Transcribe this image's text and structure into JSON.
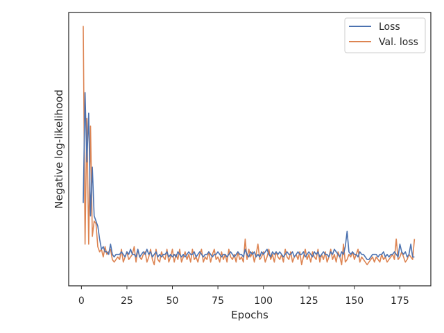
{
  "chart_data": {
    "type": "line",
    "title": "",
    "xlabel": "Epochs",
    "ylabel": "Negative log-likelihood",
    "xlim": [
      -7,
      192
    ],
    "ylim": [
      0,
      100
    ],
    "xticks": [
      0,
      25,
      50,
      75,
      100,
      125,
      150,
      175
    ],
    "y_tick_labels": "none",
    "grid": false,
    "legend_position": "top-right",
    "series": [
      {
        "name": "Loss",
        "color": "#4c72b0",
        "x": [
          1,
          2,
          3,
          4,
          5,
          6,
          7,
          8,
          9,
          10,
          11,
          12,
          13,
          14,
          15,
          16,
          17,
          18,
          19,
          20,
          21,
          22,
          23,
          24,
          25,
          26,
          27,
          28,
          29,
          30,
          31,
          32,
          33,
          34,
          35,
          36,
          37,
          38,
          39,
          40,
          41,
          42,
          43,
          44,
          45,
          46,
          47,
          48,
          49,
          50,
          51,
          52,
          53,
          54,
          55,
          56,
          57,
          58,
          59,
          60,
          61,
          62,
          63,
          64,
          65,
          66,
          67,
          68,
          69,
          70,
          71,
          72,
          73,
          74,
          75,
          76,
          77,
          78,
          79,
          80,
          81,
          82,
          83,
          84,
          85,
          86,
          87,
          88,
          89,
          90,
          91,
          92,
          93,
          94,
          95,
          96,
          97,
          98,
          99,
          100,
          101,
          102,
          103,
          104,
          105,
          106,
          107,
          108,
          109,
          110,
          111,
          112,
          113,
          114,
          115,
          116,
          117,
          118,
          119,
          120,
          121,
          122,
          123,
          124,
          125,
          126,
          127,
          128,
          129,
          130,
          131,
          132,
          133,
          134,
          135,
          136,
          137,
          138,
          139,
          140,
          141,
          142,
          143,
          144,
          145,
          146,
          147,
          148,
          149,
          150,
          151,
          152,
          153,
          154,
          155,
          156,
          157,
          158,
          159,
          160,
          161,
          162,
          163,
          164,
          165,
          166,
          167,
          168,
          169,
          170,
          171,
          172,
          173,
          174,
          175,
          176,
          177,
          178,
          179,
          180,
          181,
          182,
          183
        ],
        "values": [
          29,
          72,
          45,
          64,
          24,
          43,
          24,
          22,
          20,
          15,
          11,
          12,
          10,
          10,
          9,
          13,
          9,
          8,
          9,
          9,
          9,
          10,
          9,
          8,
          10,
          9,
          11,
          9,
          9,
          8,
          11,
          8,
          9,
          10,
          9,
          11,
          9,
          10,
          8,
          9,
          10,
          8,
          9,
          8,
          9,
          9,
          10,
          8,
          9,
          8,
          9,
          8,
          10,
          9,
          8,
          9,
          8,
          9,
          10,
          9,
          9,
          10,
          8,
          9,
          10,
          9,
          8,
          9,
          9,
          10,
          9,
          8,
          9,
          9,
          10,
          9,
          8,
          9,
          9,
          8,
          9,
          10,
          9,
          8,
          9,
          10,
          9,
          9,
          8,
          11,
          9,
          8,
          10,
          9,
          10,
          8,
          9,
          8,
          10,
          9,
          10,
          11,
          9,
          8,
          10,
          9,
          10,
          9,
          10,
          9,
          8,
          9,
          10,
          9,
          9,
          10,
          8,
          9,
          10,
          9,
          9,
          10,
          8,
          9,
          10,
          9,
          8,
          10,
          9,
          10,
          8,
          9,
          10,
          9,
          9,
          8,
          10,
          9,
          11,
          10,
          9,
          8,
          10,
          9,
          12,
          18,
          10,
          9,
          10,
          9,
          9,
          8,
          10,
          9,
          9,
          8,
          7,
          7,
          8,
          9,
          9,
          9,
          8,
          9,
          9,
          10,
          8,
          9,
          8,
          9,
          9,
          10,
          9,
          8,
          13,
          10,
          9,
          10,
          8,
          9,
          13,
          8,
          8
        ]
      },
      {
        "name": "Val. loss",
        "color": "#dd8452",
        "x": [
          1,
          2,
          3,
          4,
          5,
          6,
          7,
          8,
          9,
          10,
          11,
          12,
          13,
          14,
          15,
          16,
          17,
          18,
          19,
          20,
          21,
          22,
          23,
          24,
          25,
          26,
          27,
          28,
          29,
          30,
          31,
          32,
          33,
          34,
          35,
          36,
          37,
          38,
          39,
          40,
          41,
          42,
          43,
          44,
          45,
          46,
          47,
          48,
          49,
          50,
          51,
          52,
          53,
          54,
          55,
          56,
          57,
          58,
          59,
          60,
          61,
          62,
          63,
          64,
          65,
          66,
          67,
          68,
          69,
          70,
          71,
          72,
          73,
          74,
          75,
          76,
          77,
          78,
          79,
          80,
          81,
          82,
          83,
          84,
          85,
          86,
          87,
          88,
          89,
          90,
          91,
          92,
          93,
          94,
          95,
          96,
          97,
          98,
          99,
          100,
          101,
          102,
          103,
          104,
          105,
          106,
          107,
          108,
          109,
          110,
          111,
          112,
          113,
          114,
          115,
          116,
          117,
          118,
          119,
          120,
          121,
          122,
          123,
          124,
          125,
          126,
          127,
          128,
          129,
          130,
          131,
          132,
          133,
          134,
          135,
          136,
          137,
          138,
          139,
          140,
          141,
          142,
          143,
          144,
          145,
          146,
          147,
          148,
          149,
          150,
          151,
          152,
          153,
          154,
          155,
          156,
          157,
          158,
          159,
          160,
          161,
          162,
          163,
          164,
          165,
          166,
          167,
          168,
          169,
          170,
          171,
          172,
          173,
          174,
          175,
          176,
          177,
          178,
          179,
          180,
          181,
          182,
          183
        ],
        "values": [
          98,
          13,
          62,
          13,
          59,
          16,
          22,
          21,
          12,
          10,
          11,
          8,
          12,
          9,
          10,
          11,
          7,
          6,
          7,
          8,
          7,
          11,
          6,
          8,
          10,
          7,
          8,
          9,
          12,
          6,
          11,
          8,
          7,
          9,
          10,
          6,
          8,
          11,
          7,
          5,
          11,
          7,
          6,
          10,
          8,
          7,
          11,
          6,
          8,
          11,
          6,
          9,
          7,
          11,
          6,
          8,
          10,
          7,
          9,
          6,
          11,
          7,
          8,
          6,
          9,
          11,
          6,
          8,
          7,
          10,
          6,
          9,
          11,
          7,
          8,
          6,
          10,
          7,
          9,
          6,
          11,
          8,
          7,
          9,
          6,
          10,
          7,
          8,
          6,
          15,
          7,
          11,
          8,
          10,
          6,
          9,
          13,
          7,
          8,
          10,
          6,
          8,
          11,
          7,
          9,
          6,
          10,
          8,
          7,
          9,
          6,
          11,
          8,
          7,
          10,
          6,
          8,
          9,
          7,
          10,
          5,
          8,
          11,
          7,
          9,
          6,
          10,
          8,
          7,
          11,
          6,
          9,
          7,
          10,
          6,
          8,
          11,
          7,
          9,
          6,
          10,
          8,
          5,
          13,
          6,
          7,
          9,
          8,
          10,
          7,
          9,
          11,
          6,
          8,
          7,
          6,
          5,
          6,
          7,
          8,
          6,
          8,
          7,
          6,
          9,
          7,
          8,
          6,
          7,
          8,
          9,
          7,
          15,
          7,
          8,
          10,
          8,
          6,
          7,
          9,
          8,
          7,
          15
        ]
      }
    ]
  }
}
